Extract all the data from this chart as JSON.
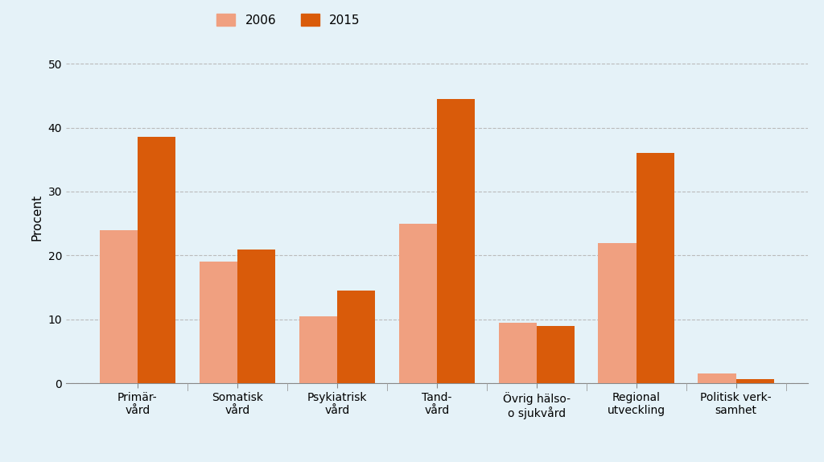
{
  "categories": [
    "Primär-\nvård",
    "Somatisk\nvård",
    "Psykiatrisk\nvård",
    "Tand-\nvård",
    "Övrig hälso-\no sjukvård",
    "Regional\nutveckling",
    "Politisk verk-\nsamhet"
  ],
  "values_2006": [
    24.0,
    19.0,
    10.5,
    25.0,
    9.5,
    22.0,
    1.5
  ],
  "values_2015": [
    38.5,
    21.0,
    14.5,
    44.5,
    9.0,
    36.0,
    0.7
  ],
  "color_2006": "#F0A080",
  "color_2015": "#D95B0A",
  "ylabel": "Procent",
  "legend_2006": "2006",
  "legend_2015": "2015",
  "ylim": [
    0,
    52
  ],
  "yticks": [
    0,
    10,
    20,
    30,
    40,
    50
  ],
  "background_color": "#E5F2F8",
  "bar_width": 0.38,
  "grid_color": "#BBBBBB",
  "axis_fontsize": 11,
  "tick_fontsize": 10,
  "legend_fontsize": 11
}
